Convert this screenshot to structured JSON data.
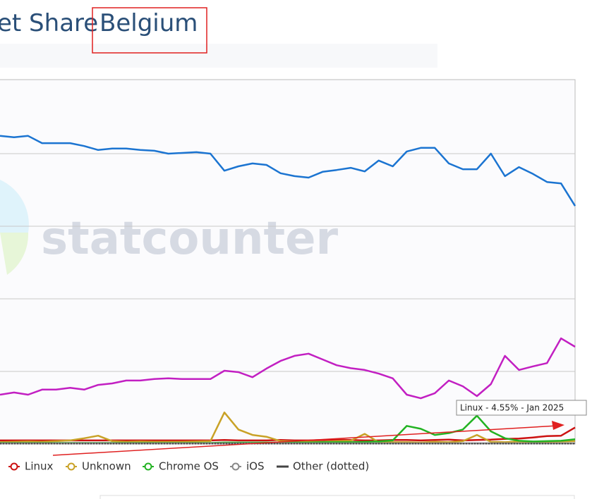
{
  "header": {
    "title_start": "et Share",
    "title_region": "Belgium"
  },
  "chart_data": {
    "type": "line",
    "watermark": "statcounter",
    "ylim": [
      0,
      100
    ],
    "gridlines": [
      20,
      40,
      60,
      80
    ],
    "tooltip": "Linux - 4.55% - Jan 2025",
    "series": [
      {
        "color": "#1b74d1",
        "values": [
          84.9,
          84.5,
          84.9,
          82.9,
          82.9,
          82.9,
          82.1,
          81.0,
          81.4,
          81.4,
          81.0,
          80.8,
          80.0,
          80.2,
          80.4,
          80.0,
          75.3,
          76.5,
          77.3,
          76.9,
          74.6,
          73.8,
          73.4,
          75.0,
          75.5,
          76.1,
          75.1,
          78.1,
          76.5,
          80.6,
          81.6,
          81.6,
          77.3,
          75.7,
          75.7,
          80.0,
          73.8,
          76.3,
          74.4,
          72.2,
          71.8,
          65.6
        ]
      },
      {
        "color": "#c21fc2",
        "values": [
          13.6,
          14.2,
          13.6,
          15.0,
          15.0,
          15.5,
          15.0,
          16.3,
          16.7,
          17.5,
          17.5,
          17.9,
          18.1,
          17.9,
          17.9,
          17.9,
          20.2,
          19.8,
          18.4,
          20.8,
          22.9,
          24.3,
          24.9,
          23.3,
          21.7,
          20.9,
          20.4,
          19.4,
          18.1,
          13.6,
          12.6,
          14.0,
          17.5,
          15.9,
          13.2,
          16.5,
          24.3,
          20.4,
          21.4,
          22.3,
          29.1,
          26.8
        ]
      },
      {
        "name": "Linux",
        "color": "#cc1111",
        "values": [
          1.0,
          1.0,
          1.0,
          1.0,
          1.0,
          1.0,
          1.0,
          1.0,
          1.0,
          1.0,
          1.0,
          1.0,
          1.0,
          1.0,
          1.0,
          1.0,
          1.1,
          1.0,
          1.0,
          1.0,
          1.1,
          1.0,
          1.0,
          1.1,
          1.2,
          1.1,
          1.0,
          1.0,
          1.1,
          1.1,
          1.0,
          1.1,
          1.2,
          1.0,
          1.1,
          1.2,
          1.4,
          1.5,
          1.8,
          2.2,
          2.3,
          4.55
        ]
      },
      {
        "name": "Unknown",
        "color": "#c9a227",
        "values": [
          0.5,
          0.6,
          0.7,
          0.6,
          0.8,
          1.0,
          1.6,
          2.3,
          0.8,
          0.6,
          0.7,
          0.6,
          0.6,
          0.6,
          0.7,
          0.8,
          8.7,
          4.0,
          2.5,
          2.0,
          0.8,
          0.7,
          0.6,
          0.6,
          0.8,
          0.9,
          2.8,
          0.5,
          0.5,
          0.5,
          0.4,
          0.6,
          0.5,
          0.8,
          2.5,
          0.6,
          0.5,
          0.7,
          0.5,
          0.6,
          0.7,
          0.8
        ]
      },
      {
        "name": "Chrome OS",
        "color": "#22b322",
        "values": [
          0.3,
          0.3,
          0.3,
          0.3,
          0.3,
          0.3,
          0.3,
          0.3,
          0.3,
          0.3,
          0.3,
          0.3,
          0.3,
          0.3,
          0.3,
          0.3,
          0.4,
          0.4,
          0.4,
          0.4,
          0.4,
          0.4,
          0.4,
          0.5,
          0.5,
          0.5,
          0.6,
          0.7,
          1.0,
          5.0,
          4.2,
          2.5,
          3.0,
          4.0,
          7.8,
          3.5,
          1.6,
          0.9,
          0.7,
          0.8,
          0.9,
          1.3
        ]
      },
      {
        "name": "iOS",
        "color": "#888888",
        "values": [
          0.2,
          0.2,
          0.2,
          0.2,
          0.2,
          0.2,
          0.2,
          0.2,
          0.2,
          0.2,
          0.2,
          0.2,
          0.2,
          0.2,
          0.2,
          0.2,
          0.2,
          0.2,
          0.2,
          0.2,
          0.2,
          0.2,
          0.2,
          0.2,
          0.2,
          0.2,
          0.2,
          0.2,
          0.2,
          0.2,
          0.2,
          0.2,
          0.2,
          0.2,
          0.2,
          0.2,
          0.2,
          0.2,
          0.2,
          0.2,
          0.2,
          0.2
        ]
      },
      {
        "name": "Other (dotted)",
        "color": "#444444",
        "dotted": true,
        "values": [
          0.1,
          0.1,
          0.1,
          0.1,
          0.1,
          0.1,
          0.1,
          0.1,
          0.1,
          0.1,
          0.1,
          0.1,
          0.1,
          0.1,
          0.1,
          0.1,
          0.1,
          0.1,
          0.1,
          0.1,
          0.1,
          0.1,
          0.1,
          0.1,
          0.1,
          0.1,
          0.1,
          0.1,
          0.1,
          0.1,
          0.1,
          0.1,
          0.1,
          0.1,
          0.1,
          0.1,
          0.1,
          0.1,
          0.1,
          0.1,
          0.1,
          0.1
        ]
      }
    ]
  }
}
